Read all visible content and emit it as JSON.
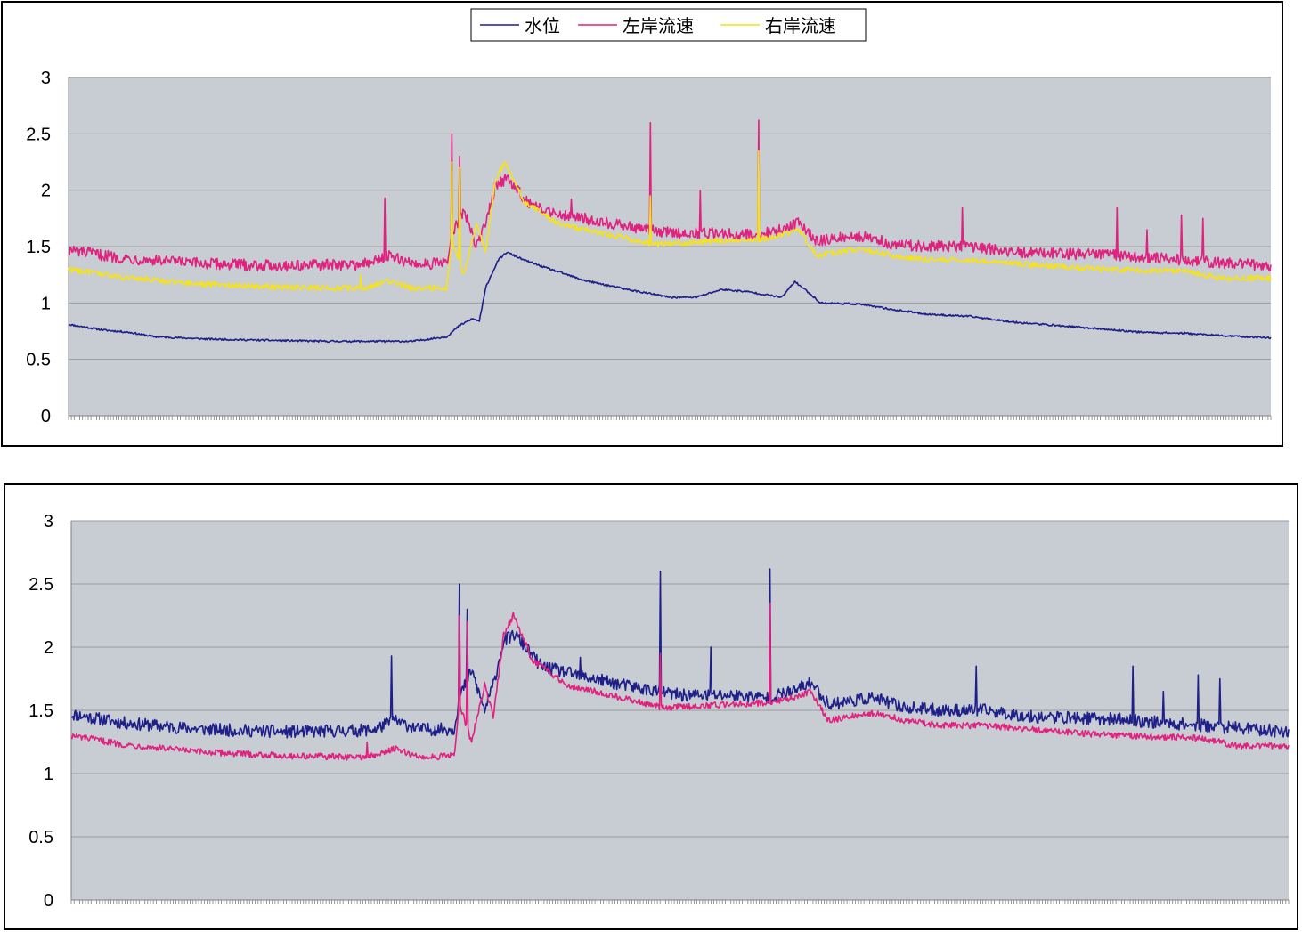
{
  "chart_data": [
    {
      "type": "line",
      "title": "",
      "xlabel": "",
      "ylabel": "",
      "ylim": [
        0,
        3
      ],
      "yticks": [
        "0",
        "0.5",
        "1",
        "1.5",
        "2",
        "2.5",
        "3"
      ],
      "grid": true,
      "legend": "top-center",
      "point_count": 1400,
      "series": [
        {
          "name": "水位",
          "color": "#1f1f8a",
          "keypoints": [
            [
              0,
              0.81
            ],
            [
              40,
              0.76
            ],
            [
              70,
              0.74
            ],
            [
              100,
              0.7
            ],
            [
              160,
              0.68
            ],
            [
              220,
              0.67
            ],
            [
              300,
              0.66
            ],
            [
              360,
              0.66
            ],
            [
              400,
              0.66
            ],
            [
              420,
              0.68
            ],
            [
              440,
              0.7
            ],
            [
              455,
              0.8
            ],
            [
              470,
              0.86
            ],
            [
              478,
              0.84
            ],
            [
              486,
              1.15
            ],
            [
              500,
              1.38
            ],
            [
              510,
              1.45
            ],
            [
              530,
              1.38
            ],
            [
              560,
              1.3
            ],
            [
              600,
              1.2
            ],
            [
              650,
              1.12
            ],
            [
              700,
              1.05
            ],
            [
              730,
              1.05
            ],
            [
              760,
              1.12
            ],
            [
              790,
              1.1
            ],
            [
              830,
              1.05
            ],
            [
              845,
              1.19
            ],
            [
              860,
              1.1
            ],
            [
              875,
              1.0
            ],
            [
              920,
              0.99
            ],
            [
              960,
              0.94
            ],
            [
              1000,
              0.9
            ],
            [
              1050,
              0.88
            ],
            [
              1100,
              0.83
            ],
            [
              1150,
              0.8
            ],
            [
              1200,
              0.77
            ],
            [
              1250,
              0.74
            ],
            [
              1300,
              0.73
            ],
            [
              1340,
              0.71
            ],
            [
              1399,
              0.69
            ]
          ],
          "noise": 0.008
        },
        {
          "name": "左岸流速",
          "color": "#e0227f",
          "keypoints": [
            [
              0,
              1.47
            ],
            [
              60,
              1.4
            ],
            [
              150,
              1.35
            ],
            [
              250,
              1.33
            ],
            [
              330,
              1.34
            ],
            [
              350,
              1.35
            ],
            [
              370,
              1.42
            ],
            [
              400,
              1.35
            ],
            [
              440,
              1.35
            ],
            [
              446,
              1.6
            ],
            [
              460,
              1.82
            ],
            [
              475,
              1.5
            ],
            [
              485,
              1.7
            ],
            [
              497,
              2.05
            ],
            [
              510,
              2.1
            ],
            [
              540,
              1.85
            ],
            [
              580,
              1.78
            ],
            [
              620,
              1.72
            ],
            [
              650,
              1.68
            ],
            [
              700,
              1.62
            ],
            [
              760,
              1.62
            ],
            [
              800,
              1.6
            ],
            [
              830,
              1.65
            ],
            [
              850,
              1.72
            ],
            [
              870,
              1.55
            ],
            [
              920,
              1.6
            ],
            [
              960,
              1.52
            ],
            [
              1000,
              1.5
            ],
            [
              1050,
              1.5
            ],
            [
              1100,
              1.45
            ],
            [
              1200,
              1.43
            ],
            [
              1300,
              1.38
            ],
            [
              1399,
              1.33
            ]
          ],
          "noise": 0.05,
          "spikes": [
            [
              368,
              1.93
            ],
            [
              446,
              2.5
            ],
            [
              455,
              2.3
            ],
            [
              585,
              1.92
            ],
            [
              677,
              2.6
            ],
            [
              735,
              2.0
            ],
            [
              803,
              2.62
            ],
            [
              1040,
              1.85
            ],
            [
              1220,
              1.85
            ],
            [
              1255,
              1.65
            ],
            [
              1295,
              1.78
            ],
            [
              1320,
              1.75
            ]
          ]
        },
        {
          "name": "右岸流速",
          "color": "#f5e21a",
          "keypoints": [
            [
              0,
              1.3
            ],
            [
              60,
              1.23
            ],
            [
              150,
              1.17
            ],
            [
              250,
              1.14
            ],
            [
              330,
              1.13
            ],
            [
              350,
              1.14
            ],
            [
              370,
              1.2
            ],
            [
              400,
              1.13
            ],
            [
              440,
              1.14
            ],
            [
              446,
              1.55
            ],
            [
              460,
              1.25
            ],
            [
              475,
              1.7
            ],
            [
              485,
              1.45
            ],
            [
              497,
              2.1
            ],
            [
              508,
              2.25
            ],
            [
              530,
              1.9
            ],
            [
              570,
              1.7
            ],
            [
              620,
              1.62
            ],
            [
              680,
              1.52
            ],
            [
              760,
              1.55
            ],
            [
              800,
              1.56
            ],
            [
              830,
              1.6
            ],
            [
              850,
              1.65
            ],
            [
              870,
              1.42
            ],
            [
              920,
              1.48
            ],
            [
              960,
              1.42
            ],
            [
              1000,
              1.38
            ],
            [
              1050,
              1.38
            ],
            [
              1100,
              1.35
            ],
            [
              1200,
              1.3
            ],
            [
              1300,
              1.28
            ],
            [
              1340,
              1.22
            ],
            [
              1399,
              1.22
            ]
          ],
          "noise": 0.025,
          "spikes": [
            [
              340,
              1.25
            ],
            [
              446,
              2.25
            ],
            [
              455,
              2.2
            ],
            [
              677,
              1.95
            ],
            [
              803,
              2.35
            ]
          ]
        }
      ]
    },
    {
      "type": "line",
      "title": "",
      "xlabel": "",
      "ylabel": "",
      "ylim": [
        0,
        3
      ],
      "yticks": [
        "0",
        "0.5",
        "1",
        "1.5",
        "2",
        "2.5",
        "3"
      ],
      "grid": true,
      "legend": "none",
      "point_count": 1400,
      "series": [
        {
          "name": "",
          "color": "#1f1f8a",
          "keypoints": [
            [
              0,
              1.47
            ],
            [
              60,
              1.4
            ],
            [
              150,
              1.35
            ],
            [
              250,
              1.33
            ],
            [
              330,
              1.34
            ],
            [
              350,
              1.35
            ],
            [
              370,
              1.42
            ],
            [
              400,
              1.35
            ],
            [
              440,
              1.35
            ],
            [
              446,
              1.6
            ],
            [
              460,
              1.82
            ],
            [
              475,
              1.5
            ],
            [
              485,
              1.7
            ],
            [
              497,
              2.05
            ],
            [
              510,
              2.1
            ],
            [
              540,
              1.85
            ],
            [
              580,
              1.78
            ],
            [
              620,
              1.72
            ],
            [
              650,
              1.68
            ],
            [
              700,
              1.62
            ],
            [
              760,
              1.62
            ],
            [
              800,
              1.6
            ],
            [
              830,
              1.65
            ],
            [
              850,
              1.72
            ],
            [
              870,
              1.55
            ],
            [
              920,
              1.6
            ],
            [
              960,
              1.52
            ],
            [
              1000,
              1.5
            ],
            [
              1050,
              1.5
            ],
            [
              1100,
              1.45
            ],
            [
              1200,
              1.43
            ],
            [
              1300,
              1.38
            ],
            [
              1399,
              1.33
            ]
          ],
          "noise": 0.05,
          "spikes": [
            [
              368,
              1.93
            ],
            [
              446,
              2.5
            ],
            [
              455,
              2.3
            ],
            [
              585,
              1.92
            ],
            [
              677,
              2.6
            ],
            [
              735,
              2.0
            ],
            [
              803,
              2.62
            ],
            [
              1040,
              1.85
            ],
            [
              1220,
              1.85
            ],
            [
              1255,
              1.65
            ],
            [
              1295,
              1.78
            ],
            [
              1320,
              1.75
            ]
          ]
        },
        {
          "name": "",
          "color": "#e0227f",
          "keypoints": [
            [
              0,
              1.3
            ],
            [
              60,
              1.23
            ],
            [
              150,
              1.17
            ],
            [
              250,
              1.14
            ],
            [
              330,
              1.13
            ],
            [
              350,
              1.14
            ],
            [
              370,
              1.2
            ],
            [
              400,
              1.13
            ],
            [
              440,
              1.14
            ],
            [
              446,
              1.55
            ],
            [
              460,
              1.25
            ],
            [
              475,
              1.7
            ],
            [
              485,
              1.45
            ],
            [
              497,
              2.1
            ],
            [
              508,
              2.25
            ],
            [
              530,
              1.9
            ],
            [
              570,
              1.7
            ],
            [
              620,
              1.62
            ],
            [
              680,
              1.52
            ],
            [
              760,
              1.55
            ],
            [
              800,
              1.56
            ],
            [
              830,
              1.6
            ],
            [
              850,
              1.65
            ],
            [
              870,
              1.42
            ],
            [
              920,
              1.48
            ],
            [
              960,
              1.42
            ],
            [
              1000,
              1.38
            ],
            [
              1050,
              1.38
            ],
            [
              1100,
              1.35
            ],
            [
              1200,
              1.3
            ],
            [
              1300,
              1.28
            ],
            [
              1340,
              1.22
            ],
            [
              1399,
              1.22
            ]
          ],
          "noise": 0.025,
          "spikes": [
            [
              340,
              1.25
            ],
            [
              446,
              2.25
            ],
            [
              455,
              2.2
            ],
            [
              677,
              1.95
            ],
            [
              803,
              2.35
            ]
          ]
        }
      ]
    }
  ],
  "colors": {
    "plot_bg": "#c8ccd3",
    "grid": "#9a9a9a",
    "border": "#000000"
  }
}
